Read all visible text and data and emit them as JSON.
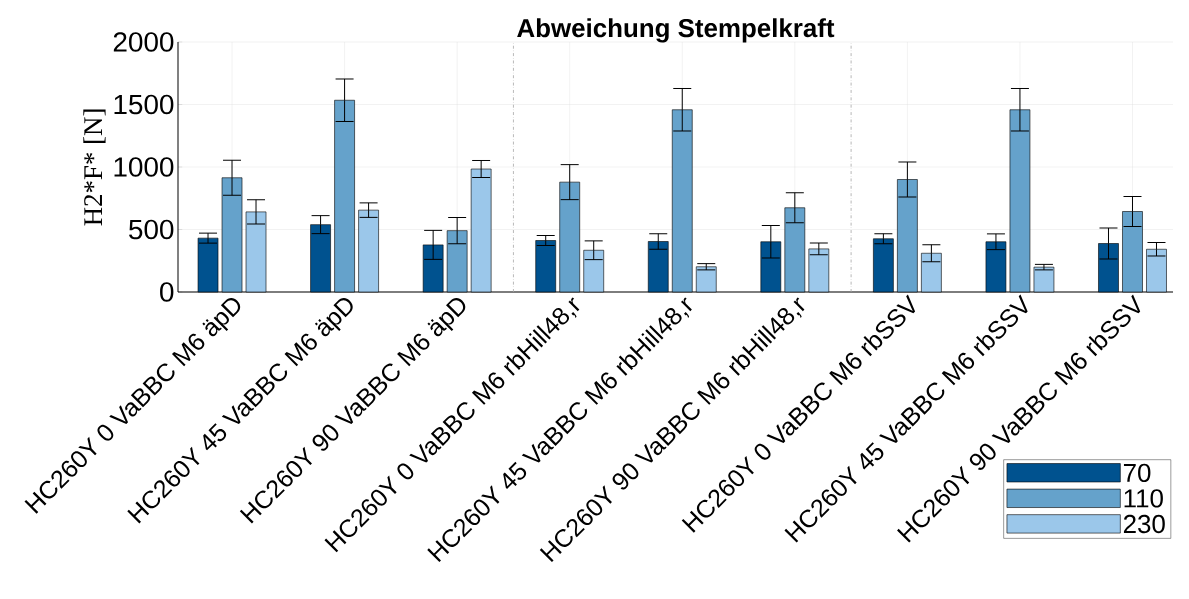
{
  "chart_data": {
    "type": "bar",
    "title": "Abweichung Stempelkraft",
    "ylabel": "H2*F* [N]",
    "categories": [
      "HC260Y 0 VaBBC M6 äpD",
      "HC260Y 45 VaBBC M6 äpD",
      "HC260Y 90 VaBBC M6 äpD",
      "HC260Y 0 VaBBC M6 rbHill48,r",
      "HC260Y 45 VaBBC M6 rbHill48,r",
      "HC260Y 90 VaBBC M6 rbHill48,r",
      "HC260Y 0 VaBBC M6 rbSSV",
      "HC260Y 45 VaBBC M6 rbSSV",
      "HC260Y 90 VaBBC M6 rbSSV"
    ],
    "series": [
      {
        "name": "70",
        "color": "#00528f",
        "values": [
          431,
          539,
          377,
          412,
          404,
          402,
          426,
          402,
          388
        ],
        "errors": [
          40,
          72,
          116,
          40,
          62,
          130,
          40,
          63,
          124
        ]
      },
      {
        "name": "110",
        "color": "#65a2cb",
        "values": [
          914,
          1534,
          491,
          879,
          1458,
          674,
          900,
          1458,
          644
        ],
        "errors": [
          140,
          170,
          105,
          140,
          170,
          120,
          140,
          170,
          120
        ]
      },
      {
        "name": "230",
        "color": "#9bc7ea",
        "values": [
          641,
          655,
          984,
          334,
          202,
          345,
          310,
          199,
          342
        ],
        "errors": [
          97,
          58,
          68,
          75,
          25,
          47,
          68,
          22,
          54
        ]
      }
    ],
    "ylim": [
      0,
      2000
    ],
    "yticks": [
      0,
      500,
      1000,
      1500,
      2000
    ],
    "grid": true,
    "legend": "bottom right"
  }
}
